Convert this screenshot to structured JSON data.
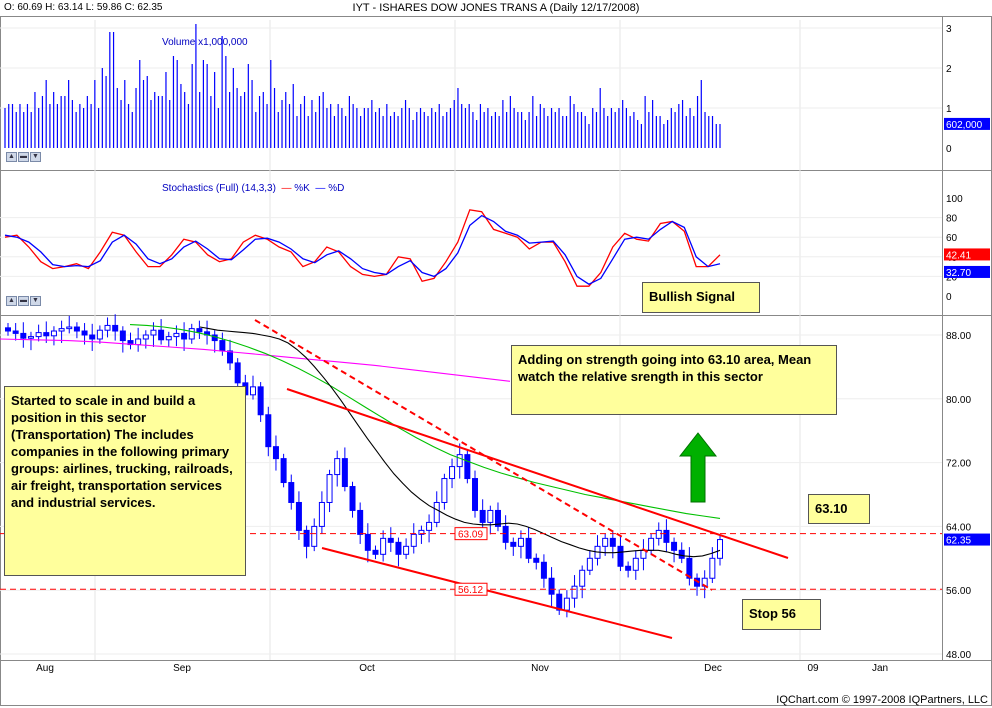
{
  "header": {
    "ohlc": "O: 60.69  H: 63.14  L: 59.86  C: 62.35",
    "title": "IYT - ISHARES DOW JONES TRANS A (Daily 12/17/2008)"
  },
  "volume_panel": {
    "label": "Volume x1,000,000",
    "ticks": [
      "3",
      "2",
      "1",
      "0"
    ],
    "last_value": "602,000"
  },
  "stoch_panel": {
    "label": "Stochastics (Full) (14,3,3)",
    "k_label": "%K",
    "d_label": "%D",
    "ticks": [
      "100",
      "80",
      "60",
      "40",
      "20",
      "0"
    ],
    "k_value": "42.41",
    "d_value": "32.70"
  },
  "price_panel": {
    "ticks": [
      "88.00",
      "80.00",
      "72.00",
      "64.00",
      "56.00",
      "48.00"
    ],
    "last_price": "62.35",
    "level_labels": [
      "63.09",
      "56.12"
    ]
  },
  "x_axis": {
    "labels": [
      "Aug",
      "Sep",
      "Oct",
      "Nov",
      "Dec",
      "09",
      "Jan"
    ]
  },
  "annotations": {
    "scale_in": "Started to scale in and build a position in this sector (Transportation) The includes companies in the following primary groups: airlines, trucking, railroads, air freight, transportation services and industrial services.",
    "adding": "Adding on strength going into 63.10 area, Mean watch the relative srength in this sector",
    "bullish": "Bullish Signal",
    "target": "63.10",
    "stop": "Stop 56"
  },
  "footer": {
    "copyright": "IQChart.com © 1997-2008 IQPartners, LLC"
  },
  "colors": {
    "volume": "#0000ff",
    "k_line": "#ff0000",
    "d_line": "#0000ff",
    "price_up": "#0000ff",
    "sma_short": "#000000",
    "sma_mid": "#00c000",
    "sma_long": "#ff00ff",
    "trendline": "#ff0000",
    "level_line": "#ff0000",
    "bullish_arrow": "#00b000"
  },
  "chart_data": [
    {
      "type": "bar",
      "name": "volume",
      "ylabel": "Volume x1,000,000",
      "ylim": [
        0,
        3.2
      ],
      "x_start": "2008-07-21",
      "x_end": "2008-12-17",
      "values": [
        1.0,
        1.1,
        1.1,
        0.9,
        1.1,
        0.9,
        1.1,
        0.9,
        1.4,
        1.0,
        1.3,
        1.7,
        1.1,
        1.4,
        1.1,
        1.3,
        1.3,
        1.7,
        1.2,
        0.9,
        1.1,
        1.0,
        1.3,
        1.1,
        1.7,
        1.0,
        2.0,
        1.8,
        2.9,
        2.9,
        1.5,
        1.2,
        1.7,
        1.1,
        0.9,
        1.5,
        2.2,
        1.7,
        1.8,
        1.2,
        1.4,
        1.3,
        1.3,
        1.9,
        1.2,
        2.3,
        2.2,
        1.6,
        1.4,
        1.1,
        2.1,
        3.1,
        1.4,
        2.2,
        2.1,
        1.3,
        1.9,
        1.0,
        2.8,
        2.3,
        1.4,
        2.0,
        1.5,
        1.3,
        1.4,
        2.1,
        1.7,
        0.9,
        1.3,
        1.4,
        1.1,
        2.2,
        1.5,
        0.9,
        1.2,
        1.4,
        1.1,
        1.6,
        0.8,
        1.1,
        1.3,
        0.8,
        1.2,
        0.9,
        1.3,
        1.4,
        1.0,
        1.1,
        0.8,
        1.1,
        1.0,
        0.8,
        1.3,
        1.1,
        1.0,
        0.8,
        1.0,
        1.0,
        1.2,
        0.9,
        1.0,
        0.8,
        1.1,
        0.8,
        0.9,
        0.8,
        1.0,
        1.2,
        1.0,
        0.7,
        0.9,
        1.0,
        0.9,
        0.8,
        1.0,
        0.9,
        1.1,
        0.8,
        0.9,
        1.0,
        1.2,
        1.5,
        1.1,
        1.0,
        1.1,
        0.9,
        0.7,
        1.1,
        0.9,
        1.0,
        0.8,
        0.9,
        0.8,
        1.2,
        0.9,
        1.3,
        1.0,
        0.9,
        0.9,
        0.7,
        0.9,
        1.3,
        0.8,
        1.1,
        1.0,
        0.8,
        1.0,
        0.9,
        1.0,
        0.8,
        0.8,
        1.3,
        1.1,
        0.9,
        0.9,
        0.8,
        0.6,
        1.0,
        0.9,
        1.5,
        1.0,
        0.8,
        1.0,
        0.9,
        1.0,
        1.2,
        1.0,
        0.8,
        0.9,
        0.7,
        0.6,
        1.3,
        0.9,
        1.2,
        0.8,
        0.8,
        0.6,
        0.7,
        1.0,
        0.9,
        1.1,
        1.2,
        0.8,
        1.0,
        0.8,
        1.3,
        1.7,
        0.9,
        0.8,
        0.8,
        0.6,
        0.6
      ],
      "last_value": 0.602
    },
    {
      "type": "line",
      "name": "stochastics",
      "title": "Stochastics (Full) (14,3,3)",
      "ylim": [
        0,
        100
      ],
      "series": [
        {
          "name": "%K",
          "color": "#ff0000",
          "values": [
            60,
            62,
            50,
            35,
            28,
            30,
            33,
            28,
            45,
            65,
            62,
            45,
            30,
            30,
            42,
            58,
            55,
            42,
            35,
            38,
            55,
            62,
            58,
            50,
            45,
            30,
            35,
            50,
            45,
            30,
            22,
            20,
            22,
            40,
            38,
            15,
            18,
            35,
            55,
            88,
            86,
            68,
            64,
            60,
            48,
            55,
            55,
            35,
            10,
            10,
            24,
            50,
            64,
            58,
            56,
            74,
            76,
            66,
            30,
            30,
            42
          ]
        },
        {
          "name": "%D",
          "color": "#0000ff",
          "values": [
            62,
            60,
            55,
            45,
            32,
            30,
            31,
            30,
            36,
            55,
            62,
            53,
            38,
            33,
            38,
            50,
            56,
            48,
            38,
            37,
            47,
            58,
            59,
            55,
            48,
            38,
            34,
            42,
            46,
            38,
            28,
            24,
            22,
            30,
            36,
            24,
            20,
            28,
            44,
            72,
            82,
            76,
            66,
            62,
            54,
            55,
            56,
            42,
            20,
            12,
            18,
            38,
            58,
            60,
            58,
            68,
            76,
            70,
            40,
            30,
            33
          ]
        }
      ],
      "last_values": {
        "%K": 42.41,
        "%D": 32.7
      }
    },
    {
      "type": "line",
      "name": "price",
      "title": "IYT - ISHARES DOW JONES TRANS A (Daily 12/17/2008)",
      "ylim": [
        48,
        92
      ],
      "x_labels": [
        "Aug",
        "Sep",
        "Oct",
        "Nov",
        "Dec",
        "09",
        "Jan"
      ],
      "ohlc_last": {
        "open": 60.69,
        "high": 63.14,
        "low": 59.86,
        "close": 62.35
      },
      "close_series": [
        88.5,
        88.2,
        87.6,
        87.8,
        88.3,
        87.9,
        88.5,
        88.8,
        89.0,
        88.5,
        88.0,
        87.5,
        88.6,
        89.2,
        88.5,
        87.3,
        86.8,
        87.5,
        88.0,
        88.6,
        87.4,
        87.8,
        88.2,
        87.5,
        88.8,
        88.4,
        88.0,
        87.3,
        86.0,
        84.5,
        82.0,
        80.5,
        81.5,
        78.0,
        74.0,
        72.5,
        69.5,
        67.0,
        63.5,
        61.5,
        64.0,
        67.0,
        70.5,
        72.5,
        69.0,
        66.0,
        63.0,
        61.0,
        60.5,
        62.5,
        62.0,
        60.5,
        61.5,
        63.0,
        63.5,
        64.5,
        67.0,
        70.0,
        71.5,
        73.0,
        70.0,
        66.0,
        64.5,
        66.0,
        64.0,
        62.0,
        61.5,
        62.5,
        60.0,
        59.5,
        57.5,
        55.5,
        53.5,
        55.0,
        56.5,
        58.5,
        60.0,
        61.5,
        62.5,
        61.5,
        59.0,
        58.5,
        60.0,
        61.0,
        62.5,
        63.5,
        62.0,
        61.0,
        60.0,
        57.5,
        56.5,
        57.5,
        60.0,
        62.35
      ],
      "sma_short": [
        89.0,
        88.8,
        88.6,
        88.5,
        88.4,
        88.3,
        88.2,
        88.0,
        87.8,
        87.5,
        87.0,
        86.2,
        85.2,
        84.0,
        82.7,
        81.3,
        79.8,
        78.2,
        76.6,
        75.0,
        73.5,
        72.0,
        70.6,
        69.4,
        68.3,
        67.4,
        66.6,
        66.0,
        65.4,
        64.9,
        64.5,
        64.3,
        64.2,
        64.2,
        64.3,
        64.4,
        64.3,
        64.0,
        63.6,
        63.1,
        62.6,
        62.1,
        61.7,
        61.3,
        61.0,
        60.8,
        60.7,
        60.7,
        60.8,
        60.9,
        61.0,
        61.0,
        61.0,
        60.8,
        60.5,
        60.3,
        60.2,
        60.3,
        60.6,
        61.0
      ],
      "sma_mid": [
        89.3,
        89.2,
        89.0,
        88.7,
        88.3,
        87.8,
        87.2,
        86.5,
        85.7,
        84.8,
        83.8,
        82.7,
        81.5,
        80.2,
        78.9,
        77.6,
        76.3,
        75.1,
        74.0,
        73.0,
        72.2,
        71.4,
        70.7,
        70.1,
        69.5,
        69.0,
        68.5,
        68.0,
        67.6,
        67.2,
        66.8,
        66.4,
        66.0,
        65.6,
        65.3,
        65.0
      ],
      "sma_long": [
        87.5,
        87.4,
        87.3,
        87.1,
        86.8,
        86.5,
        86.2,
        85.8,
        85.4,
        85.0,
        84.6,
        84.2,
        83.7,
        83.2,
        82.7,
        82.2
      ],
      "reference_levels": [
        {
          "label": "63.09",
          "value": 63.09
        },
        {
          "label": "56.12",
          "value": 56.12
        }
      ]
    }
  ]
}
